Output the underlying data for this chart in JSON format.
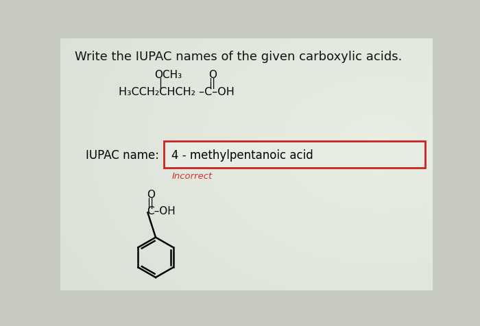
{
  "title": "Write the IUPAC names of the given carboxylic acids.",
  "title_fontsize": 13,
  "title_color": "#111111",
  "bg_color_top": "#c8cec0",
  "bg_color_mid": "#d8ddd0",
  "bg_color_right": "#d0d8cc",
  "iupac_label": "IUPAC name:",
  "iupac_answer": "4 - methylpentanoic acid",
  "incorrect_label": "Incorrect",
  "incorrect_color": "#cc3333",
  "box_edge_color": "#cc2222",
  "box_fill_color": "#e8ede4",
  "mol1_OCH3": "OCH₃",
  "mol1_O": "O",
  "mol1_pipe": "|",
  "mol1_dbl": "||",
  "mol1_chain": "H₃CCH₂CHCH₂ –C–OH",
  "mol2_O": "O",
  "mol2_dbl": "||",
  "mol2_C_OH": "C–OH"
}
